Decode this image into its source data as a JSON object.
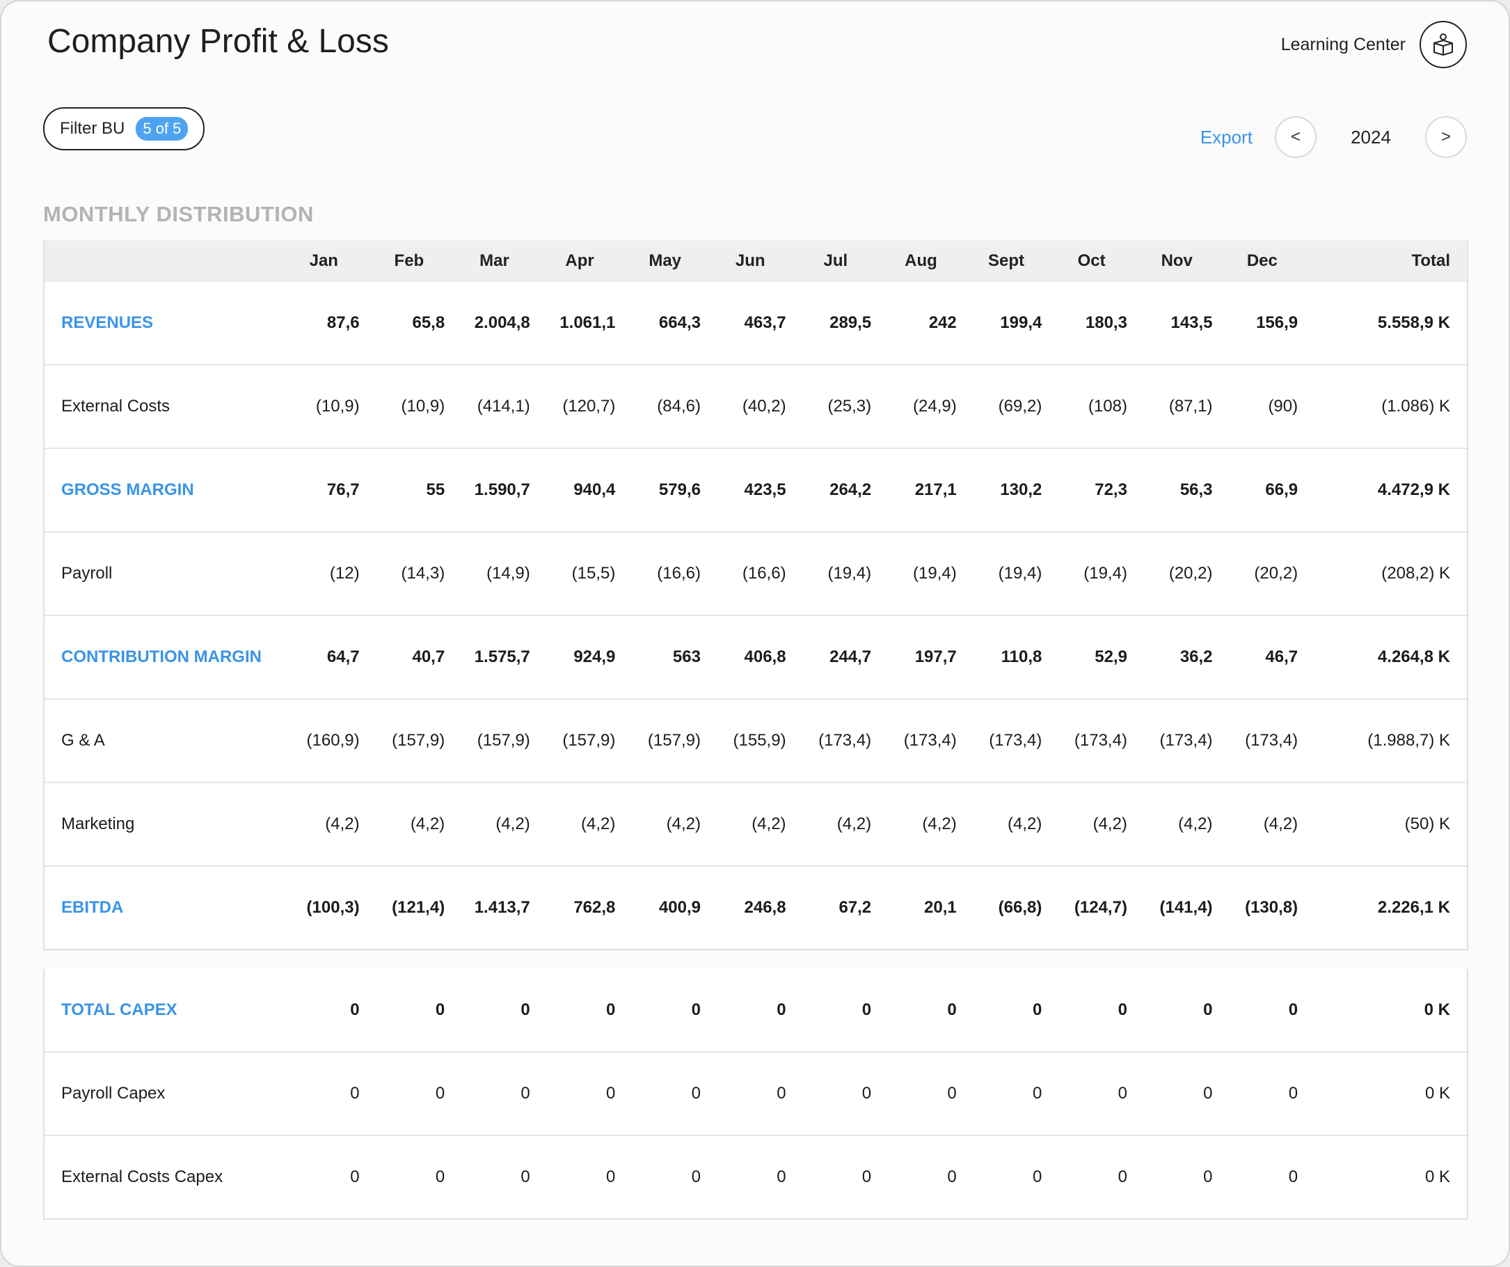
{
  "header": {
    "title": "Company Profit & Loss",
    "learning_center": "Learning Center",
    "learning_icon": "learning-center-icon"
  },
  "filter": {
    "label": "Filter BU",
    "badge": "5 of 5"
  },
  "nav": {
    "export": "Export",
    "prev": "<",
    "year": "2024",
    "next": ">"
  },
  "section_title": "MONTHLY DISTRIBUTION",
  "columns": [
    "Jan",
    "Feb",
    "Mar",
    "Apr",
    "May",
    "Jun",
    "Jul",
    "Aug",
    "Sept",
    "Oct",
    "Nov",
    "Dec"
  ],
  "total_header": "Total",
  "rows": [
    {
      "label": "REVENUES",
      "values": [
        "87,6",
        "65,8",
        "2.004,8",
        "1.061,1",
        "664,3",
        "463,7",
        "289,5",
        "242",
        "199,4",
        "180,3",
        "143,5",
        "156,9"
      ],
      "total": "5.558,9 K"
    },
    {
      "label": "External Costs",
      "values": [
        "(10,9)",
        "(10,9)",
        "(414,1)",
        "(120,7)",
        "(84,6)",
        "(40,2)",
        "(25,3)",
        "(24,9)",
        "(69,2)",
        "(108)",
        "(87,1)",
        "(90)"
      ],
      "total": "(1.086) K"
    },
    {
      "label": "GROSS MARGIN",
      "values": [
        "76,7",
        "55",
        "1.590,7",
        "940,4",
        "579,6",
        "423,5",
        "264,2",
        "217,1",
        "130,2",
        "72,3",
        "56,3",
        "66,9"
      ],
      "total": "4.472,9 K"
    },
    {
      "label": "Payroll",
      "values": [
        "(12)",
        "(14,3)",
        "(14,9)",
        "(15,5)",
        "(16,6)",
        "(16,6)",
        "(19,4)",
        "(19,4)",
        "(19,4)",
        "(19,4)",
        "(20,2)",
        "(20,2)"
      ],
      "total": "(208,2) K"
    },
    {
      "label": "CONTRIBUTION MARGIN",
      "values": [
        "64,7",
        "40,7",
        "1.575,7",
        "924,9",
        "563",
        "406,8",
        "244,7",
        "197,7",
        "110,8",
        "52,9",
        "36,2",
        "46,7"
      ],
      "total": "4.264,8 K"
    },
    {
      "label": "G & A",
      "values": [
        "(160,9)",
        "(157,9)",
        "(157,9)",
        "(157,9)",
        "(157,9)",
        "(155,9)",
        "(173,4)",
        "(173,4)",
        "(173,4)",
        "(173,4)",
        "(173,4)",
        "(173,4)"
      ],
      "total": "(1.988,7) K"
    },
    {
      "label": "Marketing",
      "values": [
        "(4,2)",
        "(4,2)",
        "(4,2)",
        "(4,2)",
        "(4,2)",
        "(4,2)",
        "(4,2)",
        "(4,2)",
        "(4,2)",
        "(4,2)",
        "(4,2)",
        "(4,2)"
      ],
      "total": "(50) K"
    },
    {
      "label": "EBITDA",
      "values": [
        "(100,3)",
        "(121,4)",
        "1.413,7",
        "762,8",
        "400,9",
        "246,8",
        "67,2",
        "20,1",
        "(66,8)",
        "(124,7)",
        "(141,4)",
        "(130,8)"
      ],
      "total": "2.226,1 K"
    }
  ],
  "capex_rows": [
    {
      "label": "TOTAL CAPEX",
      "values": [
        "0",
        "0",
        "0",
        "0",
        "0",
        "0",
        "0",
        "0",
        "0",
        "0",
        "0",
        "0"
      ],
      "total": "0 K"
    },
    {
      "label": "Payroll Capex",
      "values": [
        "0",
        "0",
        "0",
        "0",
        "0",
        "0",
        "0",
        "0",
        "0",
        "0",
        "0",
        "0"
      ],
      "total": "0 K"
    },
    {
      "label": "External Costs Capex",
      "values": [
        "0",
        "0",
        "0",
        "0",
        "0",
        "0",
        "0",
        "0",
        "0",
        "0",
        "0",
        "0"
      ],
      "total": "0 K"
    }
  ],
  "accent_color": "#3a94e6"
}
